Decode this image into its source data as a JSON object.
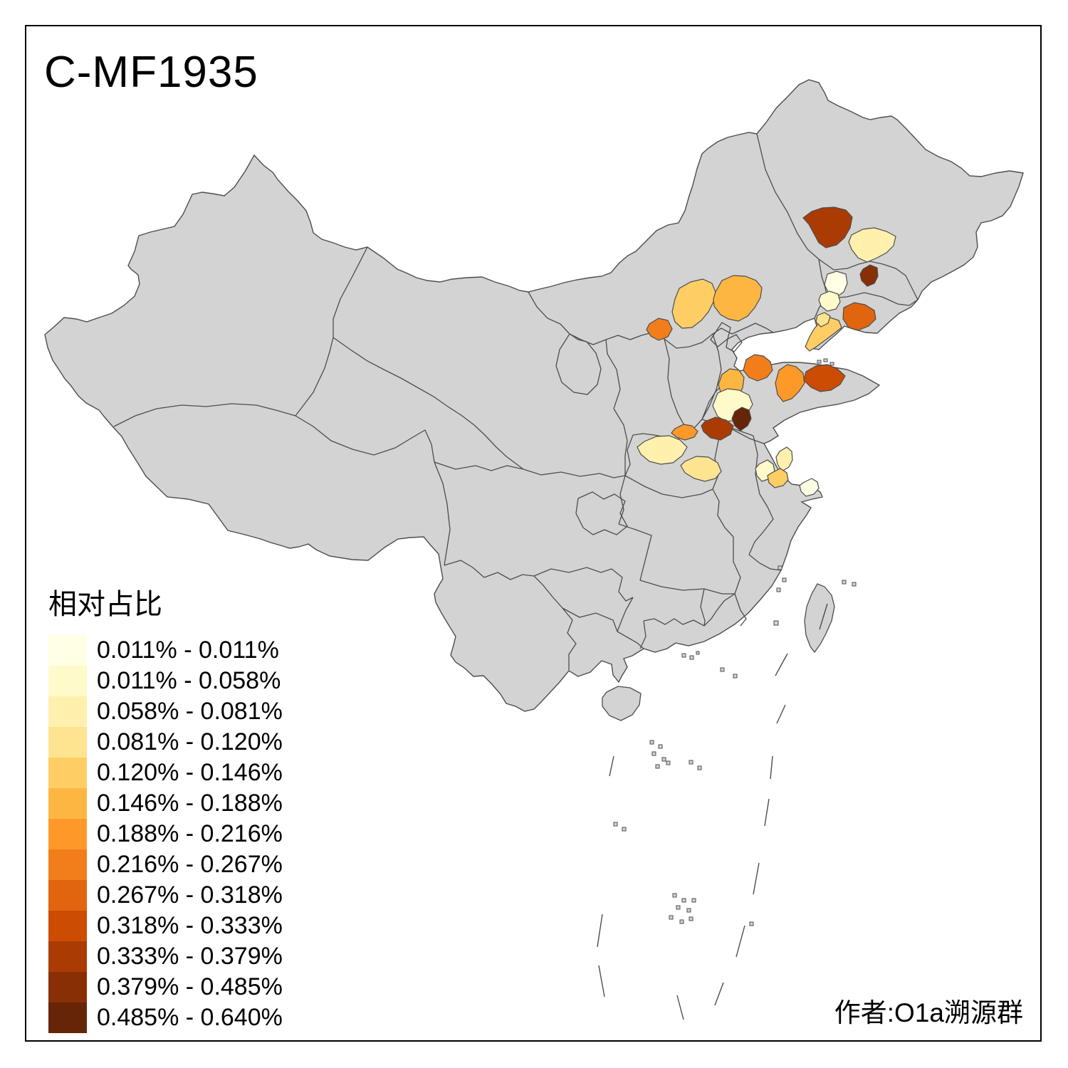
{
  "title": "C-MF1935",
  "attribution": "作者:O1a溯源群",
  "legend": {
    "title": "相对占比",
    "items": [
      {
        "label": "0.011% - 0.011%",
        "color": "#FFFFE5"
      },
      {
        "label": "0.011% - 0.058%",
        "color": "#FFFACA"
      },
      {
        "label": "0.058% - 0.081%",
        "color": "#FFF0AE"
      },
      {
        "label": "0.081% - 0.120%",
        "color": "#FEE391"
      },
      {
        "label": "0.120% - 0.146%",
        "color": "#FECE65"
      },
      {
        "label": "0.146% - 0.188%",
        "color": "#FEB642"
      },
      {
        "label": "0.188% - 0.216%",
        "color": "#FE9929"
      },
      {
        "label": "0.216% - 0.267%",
        "color": "#F27E1B"
      },
      {
        "label": "0.267% - 0.318%",
        "color": "#E1640E"
      },
      {
        "label": "0.318% - 0.333%",
        "color": "#CC4C02"
      },
      {
        "label": "0.333% - 0.379%",
        "color": "#AA3C03"
      },
      {
        "label": "0.379% - 0.485%",
        "color": "#882F05"
      },
      {
        "label": "0.485% - 0.640%",
        "color": "#662506"
      }
    ]
  },
  "map": {
    "land_fill": "#D3D3D3",
    "border_color": "#4D4D4D",
    "background": "#FFFFFF",
    "regions": [
      {
        "id": "hinggan-area",
        "bin": 10
      },
      {
        "id": "west-heilongjiang",
        "bin": 2
      },
      {
        "id": "central-jilin",
        "bin": 11
      },
      {
        "id": "west-jilin-pale",
        "bin": 0
      },
      {
        "id": "tongliao-north-pale",
        "bin": 1
      },
      {
        "id": "xilingol-south",
        "bin": 4
      },
      {
        "id": "chifeng-area",
        "bin": 5
      },
      {
        "id": "hetao-area",
        "bin": 7
      },
      {
        "id": "west-liaoning",
        "bin": 8
      },
      {
        "id": "liaodong-peninsula",
        "bin": 4
      },
      {
        "id": "liaodong-north",
        "bin": 3
      },
      {
        "id": "north-shandong",
        "bin": 7
      },
      {
        "id": "central-shandong",
        "bin": 5
      },
      {
        "id": "west-shandong-pale",
        "bin": 1
      },
      {
        "id": "east-shandong",
        "bin": 6
      },
      {
        "id": "shandong-peninsula-east",
        "bin": 9
      },
      {
        "id": "southwest-shandong-dark",
        "bin": 12
      },
      {
        "id": "east-henan-dark",
        "bin": 10
      },
      {
        "id": "north-henan",
        "bin": 6
      },
      {
        "id": "guanzhong-pale",
        "bin": 2
      },
      {
        "id": "southwest-henan",
        "bin": 3
      },
      {
        "id": "north-jiangsu-pale",
        "bin": 2
      },
      {
        "id": "huaibei-pale",
        "bin": 1
      },
      {
        "id": "central-jiangsu",
        "bin": 4
      },
      {
        "id": "shanghai-area-pale",
        "bin": 0
      }
    ]
  }
}
